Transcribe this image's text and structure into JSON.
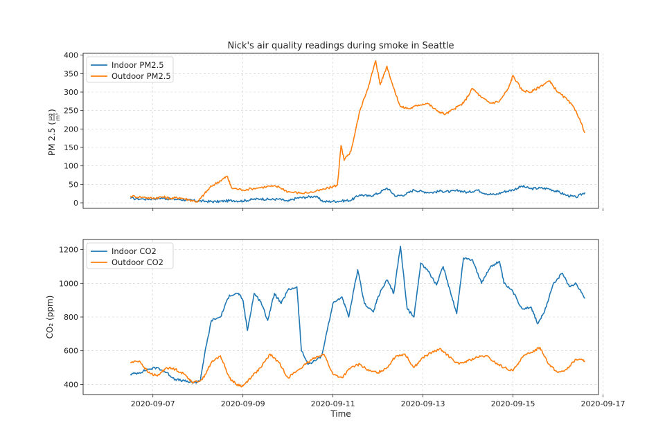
{
  "chart_data": [
    {
      "type": "line",
      "title": "Nick's air quality readings during smoke in Seattle",
      "ylabel": "PM 2.5 (µg/m³)",
      "ylabel_main": "PM 2.5 (",
      "ylabel_num": "µg",
      "ylabel_den": "m³",
      "ylabel_close": ")",
      "xlabel": "",
      "xlim": [
        5.45,
        16.9
      ],
      "ylim": [
        -15,
        405
      ],
      "yticks": [
        0,
        50,
        100,
        150,
        200,
        250,
        300,
        350,
        400
      ],
      "ytick_labels": [
        "0",
        "50",
        "100",
        "150",
        "200",
        "250",
        "300",
        "350",
        "400"
      ],
      "xticks": [
        7,
        9,
        11,
        13,
        15,
        17
      ],
      "grid": true,
      "legend_position": "upper-left",
      "series": [
        {
          "name": "Indoor PM2.5",
          "color": "#1f77b4",
          "x": [
            6.5,
            6.8,
            7.0,
            7.2,
            7.4,
            7.6,
            7.8,
            8.0,
            8.2,
            8.4,
            8.6,
            8.8,
            9.0,
            9.2,
            9.4,
            9.6,
            9.8,
            10.0,
            10.2,
            10.4,
            10.6,
            10.8,
            11.0,
            11.2,
            11.4,
            11.6,
            11.8,
            12.0,
            12.2,
            12.4,
            12.6,
            12.8,
            13.0,
            13.2,
            13.4,
            13.6,
            13.8,
            14.0,
            14.2,
            14.4,
            14.6,
            14.8,
            15.0,
            15.2,
            15.4,
            15.6,
            15.8,
            16.0,
            16.2,
            16.4,
            16.6
          ],
          "y": [
            12,
            10,
            11,
            13,
            10,
            9,
            7,
            5,
            4,
            3,
            5,
            6,
            5,
            9,
            11,
            9,
            10,
            4,
            13,
            15,
            18,
            3,
            4,
            5,
            7,
            22,
            18,
            25,
            40,
            18,
            22,
            35,
            30,
            28,
            32,
            30,
            33,
            28,
            35,
            25,
            22,
            30,
            35,
            45,
            38,
            40,
            38,
            30,
            20,
            15,
            28
          ]
        },
        {
          "name": "Outdoor PM2.5",
          "color": "#ff7f0e",
          "x": [
            6.5,
            6.8,
            7.0,
            7.2,
            7.4,
            7.6,
            7.8,
            8.0,
            8.15,
            8.3,
            8.5,
            8.65,
            8.75,
            9.0,
            9.3,
            9.6,
            9.8,
            10.0,
            10.3,
            10.6,
            10.9,
            11.1,
            11.18,
            11.25,
            11.4,
            11.6,
            11.8,
            11.95,
            12.05,
            12.2,
            12.35,
            12.5,
            12.7,
            12.9,
            13.1,
            13.3,
            13.5,
            13.7,
            13.9,
            14.1,
            14.3,
            14.5,
            14.7,
            14.9,
            15.0,
            15.2,
            15.4,
            15.6,
            15.8,
            16.0,
            16.2,
            16.4,
            16.6
          ],
          "y": [
            18,
            15,
            12,
            16,
            12,
            14,
            8,
            3,
            25,
            45,
            60,
            72,
            40,
            35,
            40,
            45,
            43,
            30,
            26,
            30,
            40,
            48,
            155,
            115,
            140,
            250,
            320,
            385,
            320,
            370,
            310,
            260,
            255,
            265,
            270,
            250,
            240,
            255,
            270,
            310,
            285,
            270,
            275,
            310,
            345,
            305,
            300,
            315,
            330,
            300,
            280,
            250,
            190
          ]
        }
      ]
    },
    {
      "type": "line",
      "title": "",
      "ylabel": "CO₂ (ppm)",
      "xlabel": "Time",
      "xlim": [
        5.45,
        16.9
      ],
      "ylim": [
        340,
        1260
      ],
      "yticks": [
        400,
        600,
        800,
        1000,
        1200
      ],
      "ytick_labels": [
        "400",
        "600",
        "800",
        "1000",
        "1200"
      ],
      "xticks": [
        7,
        9,
        11,
        13,
        15,
        17
      ],
      "xtick_labels": [
        "2020-09-07",
        "2020-09-09",
        "2020-09-11",
        "2020-09-13",
        "2020-09-15",
        "2020-09-17"
      ],
      "grid": true,
      "legend_position": "upper-left",
      "series": [
        {
          "name": "Indoor CO2",
          "color": "#1f77b4",
          "x": [
            6.5,
            6.7,
            6.9,
            7.1,
            7.3,
            7.5,
            7.7,
            7.9,
            8.05,
            8.15,
            8.3,
            8.5,
            8.7,
            8.9,
            9.0,
            9.1,
            9.25,
            9.4,
            9.55,
            9.7,
            9.85,
            10.0,
            10.2,
            10.3,
            10.45,
            10.6,
            10.75,
            11.0,
            11.2,
            11.35,
            11.55,
            11.7,
            11.9,
            12.0,
            12.2,
            12.35,
            12.5,
            12.65,
            12.8,
            12.95,
            13.1,
            13.3,
            13.45,
            13.6,
            13.75,
            13.9,
            14.1,
            14.3,
            14.5,
            14.7,
            14.8,
            15.0,
            15.2,
            15.4,
            15.55,
            15.7,
            15.9,
            16.1,
            16.25,
            16.4,
            16.6
          ],
          "y": [
            460,
            470,
            490,
            500,
            470,
            430,
            420,
            410,
            420,
            580,
            780,
            800,
            930,
            940,
            900,
            720,
            940,
            890,
            780,
            940,
            880,
            960,
            980,
            600,
            520,
            540,
            570,
            880,
            920,
            800,
            1080,
            880,
            830,
            920,
            1020,
            940,
            1220,
            850,
            800,
            1120,
            1080,
            990,
            1100,
            960,
            820,
            1150,
            1140,
            1000,
            1100,
            1130,
            1000,
            950,
            850,
            860,
            760,
            830,
            1000,
            1060,
            980,
            1000,
            910
          ]
        },
        {
          "name": "Outdoor CO2",
          "color": "#ff7f0e",
          "x": [
            6.5,
            6.7,
            6.9,
            7.1,
            7.3,
            7.5,
            7.7,
            7.9,
            8.1,
            8.3,
            8.5,
            8.7,
            8.85,
            9.0,
            9.2,
            9.4,
            9.6,
            9.8,
            10.0,
            10.2,
            10.4,
            10.6,
            10.8,
            11.0,
            11.2,
            11.4,
            11.6,
            11.8,
            12.0,
            12.2,
            12.4,
            12.6,
            12.8,
            13.0,
            13.2,
            13.4,
            13.6,
            13.8,
            14.0,
            14.2,
            14.4,
            14.6,
            14.8,
            15.0,
            15.2,
            15.4,
            15.6,
            15.8,
            16.0,
            16.2,
            16.4,
            16.6
          ],
          "y": [
            530,
            540,
            470,
            450,
            500,
            490,
            460,
            410,
            430,
            530,
            570,
            440,
            400,
            390,
            450,
            500,
            580,
            530,
            440,
            480,
            520,
            560,
            580,
            460,
            440,
            500,
            520,
            480,
            470,
            500,
            570,
            580,
            500,
            560,
            590,
            610,
            560,
            520,
            540,
            560,
            570,
            530,
            500,
            480,
            560,
            590,
            620,
            520,
            470,
            490,
            550,
            540
          ]
        }
      ]
    }
  ]
}
